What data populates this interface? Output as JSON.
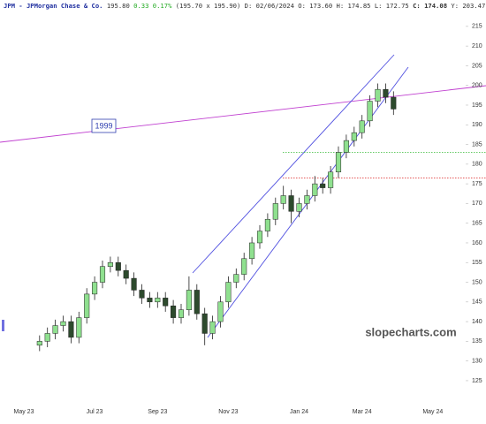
{
  "chart_data": {
    "type": "candlestick",
    "header": {
      "symbol": "JPM - JPMorgan Chase & Co.",
      "last": "195.80",
      "change": "0.33",
      "change_pct": "0.17%",
      "bid_ask": "(195.70 x 195.90)",
      "date": "D: 02/06/2024",
      "open": "O: 173.60",
      "high": "H: 174.85",
      "low": "L: 172.75",
      "close": "C: 174.08",
      "year_high": "Y: 203.47"
    },
    "watermark": "slopecharts.com",
    "annotation": "1999",
    "categories": [
      "May 23",
      null,
      null,
      null,
      null,
      null,
      null,
      null,
      null,
      "Jul 23",
      null,
      null,
      null,
      null,
      null,
      null,
      null,
      "Sep 23",
      null,
      null,
      null,
      null,
      null,
      null,
      null,
      null,
      "Nov 23",
      null,
      null,
      null,
      null,
      null,
      null,
      null,
      null,
      "Jan 24",
      null,
      null,
      null,
      null,
      null,
      null,
      null,
      "Mar 24",
      null,
      null,
      null,
      null,
      null,
      null,
      null,
      null,
      "May 24",
      null,
      null,
      null,
      null
    ],
    "open": [
      null,
      null,
      134,
      135,
      137,
      139,
      140,
      136,
      141,
      147,
      150,
      154,
      155,
      153,
      151,
      148,
      146,
      145,
      146,
      144,
      141,
      143,
      148,
      142,
      137,
      140,
      145,
      150,
      152,
      156,
      160,
      163,
      166,
      170,
      172,
      168,
      170,
      172,
      175,
      174,
      178,
      183,
      186,
      188,
      191,
      196,
      199,
      197,
      null,
      null,
      null,
      null,
      null,
      null,
      null,
      null,
      null
    ],
    "high": [
      null,
      null,
      136.5,
      138.5,
      140.5,
      141.5,
      141.5,
      142.5,
      148.5,
      151.5,
      155.5,
      156.5,
      156.5,
      154.5,
      152.5,
      149.5,
      147.5,
      147.5,
      147.5,
      145.5,
      144.5,
      151.5,
      149.5,
      143.5,
      141.5,
      146.5,
      151.5,
      153.5,
      157.5,
      161.5,
      164.5,
      167.5,
      171.5,
      174.5,
      173.5,
      171.5,
      173.5,
      177,
      176.5,
      179.5,
      184.5,
      187.5,
      189.5,
      192.5,
      197.5,
      200.5,
      200.5,
      198.5,
      null,
      null,
      null,
      null,
      null,
      null,
      null,
      null,
      null
    ],
    "low": [
      null,
      null,
      132.5,
      133.5,
      135.5,
      137.5,
      134.5,
      134.5,
      139.5,
      145.5,
      148.5,
      152.5,
      151.5,
      149.5,
      146.5,
      144.5,
      143.5,
      143.5,
      142.5,
      139.5,
      139.5,
      141.5,
      140.5,
      134,
      135.5,
      138.5,
      143.5,
      148.5,
      150.5,
      154.5,
      158.5,
      161.5,
      164.5,
      168.5,
      165,
      166.5,
      168.5,
      170.5,
      172.5,
      172.5,
      176.5,
      181.5,
      184.5,
      186.5,
      189.5,
      194.5,
      195.5,
      192.5,
      null,
      null,
      null,
      null,
      null,
      null,
      null,
      null,
      null
    ],
    "close": [
      null,
      null,
      135,
      137,
      139,
      140,
      136,
      141,
      147,
      150,
      154,
      155,
      153,
      151,
      148,
      146,
      145,
      146,
      144,
      141,
      143,
      148,
      142,
      137,
      140,
      145,
      150,
      152,
      156,
      160,
      163,
      166,
      170,
      172,
      168,
      170,
      172,
      175,
      174,
      178,
      183,
      186,
      188,
      191,
      196,
      199,
      197,
      194,
      null,
      null,
      null,
      null,
      null,
      null,
      null,
      null,
      null
    ],
    "up_color": "#8fe08f",
    "down_color": "#2d4a2d",
    "levels": [
      {
        "value": 183,
        "color": "#33bb33"
      },
      {
        "value": 176.5,
        "color": "#e04040"
      }
    ],
    "ylim": [
      119.6,
      221.7
    ],
    "yticks": [
      125,
      130,
      135,
      140,
      145,
      150,
      155,
      160,
      165,
      170,
      175,
      180,
      185,
      190,
      195,
      200,
      205,
      210,
      215
    ]
  }
}
